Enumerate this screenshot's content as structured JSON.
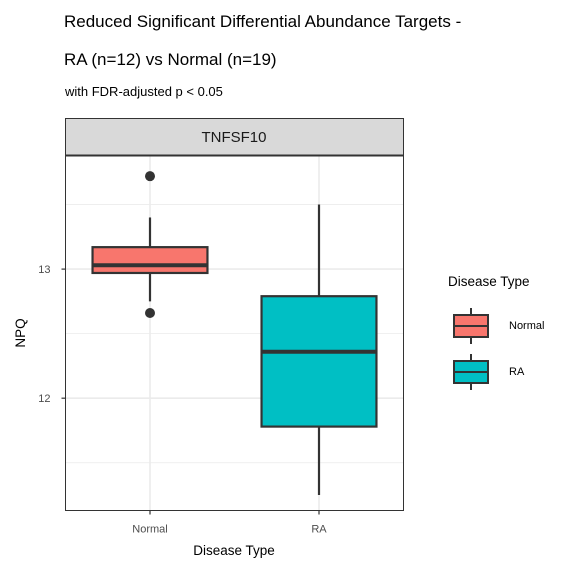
{
  "chart_data": {
    "type": "boxplot",
    "title_line1": "Reduced Significant Differential Abundance Targets -",
    "title_line2": "RA (n=12) vs Normal (n=19)",
    "subtitle": "with FDR-adjusted p < 0.05",
    "facet": "TNFSF10",
    "xlabel": "Disease Type",
    "ylabel": "NPQ",
    "categories": [
      "Normal",
      "RA"
    ],
    "y_ticks": [
      12,
      13
    ],
    "y_tick_labels": [
      "12",
      "13"
    ],
    "ylim": [
      11.13,
      13.88
    ],
    "grid": true,
    "legend_position": "right",
    "legend": {
      "title": "Disease Type",
      "items": [
        {
          "label": "Normal",
          "color": "#F8766D"
        },
        {
          "label": "RA",
          "color": "#00BFC4"
        }
      ]
    },
    "series": [
      {
        "category": "Normal",
        "color": "#F8766D",
        "whisker_low": 12.75,
        "q1": 12.97,
        "median": 13.03,
        "q3": 13.17,
        "whisker_high": 13.4,
        "outliers": [
          13.72,
          12.66
        ]
      },
      {
        "category": "RA",
        "color": "#00BFC4",
        "whisker_low": 11.25,
        "q1": 11.78,
        "median": 12.36,
        "q3": 12.79,
        "whisker_high": 13.5,
        "outliers": []
      }
    ]
  }
}
